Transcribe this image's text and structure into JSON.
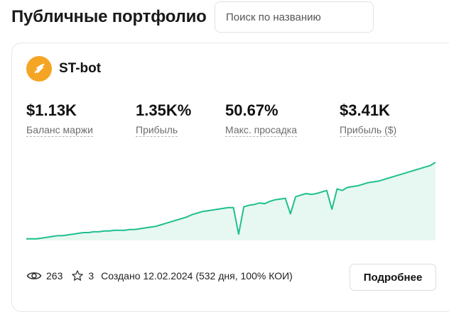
{
  "header": {
    "title": "Публичные портфолио",
    "search_placeholder": "Поиск по названию"
  },
  "card": {
    "bot_name": "ST-bot",
    "avatar_color": "#f5a524",
    "metrics": [
      {
        "value": "$1.13K",
        "label": "Баланс маржи"
      },
      {
        "value": "1.35K%",
        "label": "Прибыль"
      },
      {
        "value": "50.67%",
        "label": "Макс. просадка"
      },
      {
        "value": "$3.41K",
        "label": "Прибыль ($)"
      }
    ],
    "chart_color": "#1fbf8f",
    "chart_fill": "#e6f8f1",
    "chart_data": {
      "type": "area",
      "values": [
        2,
        2,
        2,
        3,
        4,
        5,
        6,
        6,
        7,
        8,
        9,
        10,
        10,
        11,
        11,
        12,
        12,
        13,
        13,
        13,
        14,
        14,
        15,
        16,
        17,
        18,
        20,
        22,
        24,
        26,
        28,
        30,
        33,
        35,
        37,
        38,
        39,
        40,
        41,
        42,
        42,
        8,
        43,
        45,
        46,
        48,
        47,
        50,
        52,
        53,
        54,
        34,
        56,
        58,
        60,
        59,
        60,
        62,
        64,
        40,
        66,
        64,
        68,
        69,
        70,
        72,
        74,
        75,
        76,
        78,
        80,
        82,
        84,
        86,
        88,
        90,
        92,
        94,
        96,
        100
      ]
    },
    "footer": {
      "views": "263",
      "stars": "3",
      "created": "Создано 12.02.2024 (532 дня, 100% КОИ)",
      "details_label": "Подробнее"
    }
  }
}
